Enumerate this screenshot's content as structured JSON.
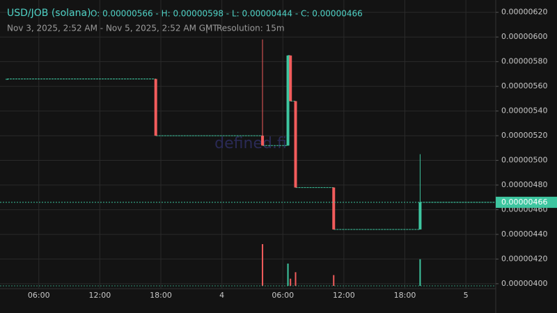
{
  "chart_data": {
    "type": "candlestick",
    "title": "USD/JOB (solana)",
    "ohlc_summary": "O: 0.00000566 - H: 0.00000598 - L: 0.00000444 - C: 0.00000466",
    "subtitle": "Nov 3, 2025, 2:52 AM - Nov 5, 2025, 2:52 AM GMT",
    "separator": "|",
    "resolution": "Resolution: 15m",
    "watermark": "defined.fi",
    "up_color": "#3ec6a0",
    "down_color": "#f25c5c",
    "x": [
      2.867,
      17.5,
      28.0,
      30.5,
      30.75,
      31.25,
      35.0,
      43.5
    ],
    "open": [
      5.66e-06,
      5.66e-06,
      5.2e-06,
      5.12e-06,
      5.85e-06,
      5.48e-06,
      4.78e-06,
      4.44e-06
    ],
    "high": [
      5.66e-06,
      5.66e-06,
      5.98e-06,
      5.85e-06,
      5.85e-06,
      5.48e-06,
      4.78e-06,
      5.05e-06
    ],
    "low": [
      5.66e-06,
      5.2e-06,
      5.12e-06,
      5.12e-06,
      5.48e-06,
      4.78e-06,
      4.44e-06,
      4.44e-06
    ],
    "close": [
      5.66e-06,
      5.2e-06,
      5.12e-06,
      5.85e-06,
      5.48e-06,
      4.78e-06,
      4.44e-06,
      4.66e-06
    ],
    "volume": [
      0,
      0,
      58,
      31,
      10,
      19,
      15,
      37
    ],
    "last_price": {
      "value": 4.66e-06,
      "label": "0.00000466"
    },
    "xlim": [
      2.867,
      50.867
    ],
    "xticks": [
      {
        "value": 6,
        "label": "06:00"
      },
      {
        "value": 12,
        "label": "12:00"
      },
      {
        "value": 18,
        "label": "18:00"
      },
      {
        "value": 24,
        "label": "4"
      },
      {
        "value": 30,
        "label": "06:00"
      },
      {
        "value": 36,
        "label": "12:00"
      },
      {
        "value": 42,
        "label": "18:00"
      },
      {
        "value": 48,
        "label": "5"
      }
    ],
    "ylim": [
      3.96e-06,
      6.3e-06
    ],
    "yticks": [
      {
        "value": 4e-06,
        "label": "0.00000400"
      },
      {
        "value": 4.2e-06,
        "label": "0.00000420"
      },
      {
        "value": 4.4e-06,
        "label": "0.00000440"
      },
      {
        "value": 4.6e-06,
        "label": "0.00000460"
      },
      {
        "value": 4.8e-06,
        "label": "0.00000480"
      },
      {
        "value": 5e-06,
        "label": "0.00000500"
      },
      {
        "value": 5.2e-06,
        "label": "0.00000520"
      },
      {
        "value": 5.4e-06,
        "label": "0.00000540"
      },
      {
        "value": 5.6e-06,
        "label": "0.00000560"
      },
      {
        "value": 5.8e-06,
        "label": "0.00000580"
      },
      {
        "value": 6e-06,
        "label": "0.00000600"
      },
      {
        "value": 6.2e-06,
        "label": "0.00000620"
      }
    ],
    "grid": true
  }
}
